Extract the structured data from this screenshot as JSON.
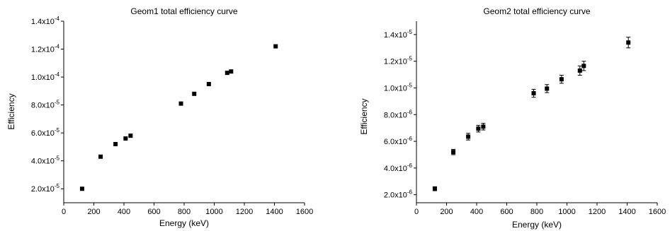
{
  "chart_data": [
    {
      "type": "scatter",
      "title": "Geom1 total efficiency curve",
      "xlabel": "Energy (keV)",
      "ylabel": "Efficiency",
      "xlim": [
        0,
        1600
      ],
      "ylim": [
        1e-05,
        0.00014
      ],
      "x_ticks": [
        {
          "value": 0,
          "label": "0"
        },
        {
          "value": 200,
          "label": "200"
        },
        {
          "value": 400,
          "label": "400"
        },
        {
          "value": 600,
          "label": "600"
        },
        {
          "value": 800,
          "label": "800"
        },
        {
          "value": 1000,
          "label": "1000"
        },
        {
          "value": 1200,
          "label": "1200"
        },
        {
          "value": 1400,
          "label": "1400"
        },
        {
          "value": 1600,
          "label": "1600"
        }
      ],
      "y_ticks": [
        {
          "value": 2e-05,
          "mantissa": "2.0x10",
          "exp": "-5"
        },
        {
          "value": 4e-05,
          "mantissa": "4.0x10",
          "exp": "-5"
        },
        {
          "value": 6e-05,
          "mantissa": "6.0x10",
          "exp": "-5"
        },
        {
          "value": 8e-05,
          "mantissa": "8.0x10",
          "exp": "-5"
        },
        {
          "value": 0.0001,
          "mantissa": "1.0x10",
          "exp": "-4"
        },
        {
          "value": 0.00012,
          "mantissa": "1.2x10",
          "exp": "-4"
        },
        {
          "value": 0.00014,
          "mantissa": "1.4x10",
          "exp": "-4"
        }
      ],
      "grid": false,
      "points": [
        {
          "x": 122,
          "y": 2e-05
        },
        {
          "x": 245,
          "y": 4.3e-05
        },
        {
          "x": 344,
          "y": 5.2e-05
        },
        {
          "x": 411,
          "y": 5.6e-05
        },
        {
          "x": 444,
          "y": 5.8e-05
        },
        {
          "x": 779,
          "y": 8.1e-05
        },
        {
          "x": 867,
          "y": 8.8e-05
        },
        {
          "x": 964,
          "y": 9.5e-05
        },
        {
          "x": 1086,
          "y": 0.000103
        },
        {
          "x": 1112,
          "y": 0.000104
        },
        {
          "x": 1408,
          "y": 0.000122
        }
      ]
    },
    {
      "type": "scatter",
      "title": "Geom2 total efficiency curve",
      "xlabel": "Energy (keV)",
      "ylabel": "Efficiency",
      "xlim": [
        0,
        1600
      ],
      "ylim": [
        1.4e-06,
        1.5e-05
      ],
      "x_ticks": [
        {
          "value": 0,
          "label": "0"
        },
        {
          "value": 200,
          "label": "200"
        },
        {
          "value": 400,
          "label": "400"
        },
        {
          "value": 600,
          "label": "600"
        },
        {
          "value": 800,
          "label": "800"
        },
        {
          "value": 1000,
          "label": "1000"
        },
        {
          "value": 1200,
          "label": "1200"
        },
        {
          "value": 1400,
          "label": "1400"
        },
        {
          "value": 1600,
          "label": "1600"
        }
      ],
      "y_ticks": [
        {
          "value": 2e-06,
          "mantissa": "2.0x10",
          "exp": "-6"
        },
        {
          "value": 4e-06,
          "mantissa": "4.0x10",
          "exp": "-6"
        },
        {
          "value": 6e-06,
          "mantissa": "6.0x10",
          "exp": "-6"
        },
        {
          "value": 8e-06,
          "mantissa": "8.0x10",
          "exp": "-6"
        },
        {
          "value": 1e-05,
          "mantissa": "1.0x10",
          "exp": "-5"
        },
        {
          "value": 1.2e-05,
          "mantissa": "1.2x10",
          "exp": "-5"
        },
        {
          "value": 1.4e-05,
          "mantissa": "1.4x10",
          "exp": "-5"
        }
      ],
      "grid": false,
      "points": [
        {
          "x": 122,
          "y": 2.45e-06,
          "err": 1.5e-07
        },
        {
          "x": 245,
          "y": 5.2e-06,
          "err": 2e-07
        },
        {
          "x": 344,
          "y": 6.35e-06,
          "err": 2.5e-07
        },
        {
          "x": 411,
          "y": 6.95e-06,
          "err": 2.5e-07
        },
        {
          "x": 444,
          "y": 7.1e-06,
          "err": 2.5e-07
        },
        {
          "x": 779,
          "y": 9.6e-06,
          "err": 3e-07
        },
        {
          "x": 867,
          "y": 9.95e-06,
          "err": 3e-07
        },
        {
          "x": 964,
          "y": 1.065e-05,
          "err": 3e-07
        },
        {
          "x": 1086,
          "y": 1.13e-05,
          "err": 3.5e-07
        },
        {
          "x": 1112,
          "y": 1.165e-05,
          "err": 3.5e-07
        },
        {
          "x": 1408,
          "y": 1.34e-05,
          "err": 4e-07
        }
      ]
    }
  ]
}
